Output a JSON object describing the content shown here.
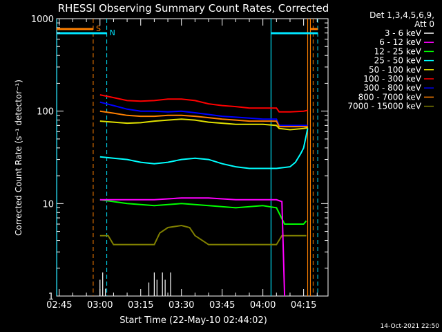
{
  "chart_data": {
    "type": "line",
    "title": "RHESSI Observing Summary Count Rates, Corrected",
    "xlabel": "Start Time (22-May-10 02:44:02)",
    "ylabel": "Corrected Count Rate (s⁻¹ detector⁻¹)",
    "yscale": "log",
    "ylim": [
      1,
      1000
    ],
    "xlim": [
      "02:44:02",
      "04:24:00"
    ],
    "xticks": [
      "02:45",
      "03:00",
      "03:15",
      "03:30",
      "03:45",
      "04:00",
      "04:15"
    ],
    "yticks": [
      "1",
      "10",
      "100",
      "1000"
    ],
    "grid": false,
    "legend_position": "right",
    "legend_header": [
      "Det 1,3,4,5,6,9,",
      "Att 0"
    ],
    "footer": "14-Oct-2021 22:50",
    "flags": [
      {
        "label": "S",
        "color": "#ff8000"
      },
      {
        "label": "N",
        "color": "#00e5ff"
      }
    ],
    "series": [
      {
        "name": "3 - 6 keV",
        "color": "#ffffff",
        "x": [
          "03:00",
          "03:01",
          "03:02",
          "03:18",
          "03:20",
          "03:21",
          "03:23",
          "03:24",
          "03:26"
        ],
        "y": [
          1.5,
          1.8,
          1.2,
          1.4,
          1.8,
          1.5,
          1.8,
          1.5,
          1.8
        ]
      },
      {
        "name": "6 - 12 keV",
        "color": "#ff00ff",
        "x": [
          "03:00",
          "03:10",
          "03:20",
          "03:30",
          "03:40",
          "03:50",
          "04:00",
          "04:05",
          "04:07",
          "04:08"
        ],
        "y": [
          11,
          11,
          11,
          11.5,
          11.5,
          11,
          11,
          11,
          10.5,
          1
        ]
      },
      {
        "name": "12 - 25 keV",
        "color": "#00ff00",
        "x": [
          "03:00",
          "03:05",
          "03:10",
          "03:20",
          "03:30",
          "03:40",
          "03:50",
          "04:00",
          "04:05",
          "04:08",
          "04:15",
          "04:16"
        ],
        "y": [
          11,
          10.5,
          10,
          9.5,
          10,
          9.5,
          9,
          9.5,
          9,
          6,
          6,
          6.5
        ]
      },
      {
        "name": "25 - 50 keV",
        "color": "#00ffff",
        "x": [
          "03:00",
          "03:05",
          "03:10",
          "03:15",
          "03:20",
          "03:25",
          "03:30",
          "03:35",
          "03:40",
          "03:45",
          "03:50",
          "03:55",
          "04:00",
          "04:05",
          "04:10",
          "04:12",
          "04:14",
          "04:15",
          "04:16",
          "04:16.5"
        ],
        "y": [
          32,
          31,
          30,
          28,
          27,
          28,
          30,
          31,
          30,
          27,
          25,
          24,
          24,
          24,
          25,
          28,
          35,
          40,
          55,
          65
        ]
      },
      {
        "name": "50 - 100 keV",
        "color": "#e0e000",
        "x": [
          "03:00",
          "03:05",
          "03:10",
          "03:15",
          "03:20",
          "03:25",
          "03:30",
          "03:35",
          "03:40",
          "03:45",
          "03:50",
          "03:55",
          "04:00",
          "04:05",
          "04:06",
          "04:10",
          "04:15",
          "04:16.5"
        ],
        "y": [
          78,
          76,
          74,
          75,
          78,
          80,
          82,
          80,
          76,
          74,
          72,
          72,
          72,
          70,
          65,
          63,
          65,
          66
        ]
      },
      {
        "name": "100 - 300 keV",
        "color": "#ff0000",
        "x": [
          "03:00",
          "03:05",
          "03:10",
          "03:15",
          "03:20",
          "03:25",
          "03:30",
          "03:35",
          "03:40",
          "03:45",
          "03:50",
          "03:55",
          "04:00",
          "04:05",
          "04:06",
          "04:10",
          "04:15",
          "04:16.5"
        ],
        "y": [
          150,
          140,
          130,
          128,
          130,
          135,
          135,
          130,
          120,
          115,
          112,
          108,
          108,
          108,
          98,
          98,
          100,
          102
        ]
      },
      {
        "name": "300 - 800 keV",
        "color": "#0000ff",
        "x": [
          "03:00",
          "03:05",
          "03:10",
          "03:15",
          "03:20",
          "03:25",
          "03:30",
          "03:35",
          "03:40",
          "03:45",
          "03:50",
          "03:55",
          "04:00",
          "04:05",
          "04:06",
          "04:10",
          "04:15",
          "04:16.5"
        ],
        "y": [
          125,
          115,
          105,
          100,
          100,
          98,
          100,
          96,
          92,
          88,
          86,
          84,
          82,
          82,
          70,
          70,
          70,
          70
        ]
      },
      {
        "name": "800 - 7000 keV",
        "color": "#ff8000",
        "x": [
          "03:00",
          "03:05",
          "03:10",
          "03:15",
          "03:20",
          "03:25",
          "03:30",
          "03:35",
          "03:40",
          "03:45",
          "03:50",
          "03:55",
          "04:00",
          "04:05",
          "04:06",
          "04:10",
          "04:15",
          "04:16.5"
        ],
        "y": [
          100,
          95,
          90,
          88,
          88,
          90,
          90,
          88,
          85,
          82,
          80,
          78,
          78,
          78,
          68,
          68,
          68,
          68
        ]
      },
      {
        "name": "7000 - 15000 keV",
        "color": "#808000",
        "x": [
          "03:00",
          "03:03",
          "03:05",
          "03:10",
          "03:15",
          "03:20",
          "03:22",
          "03:25",
          "03:30",
          "03:33",
          "03:35",
          "03:40",
          "03:45",
          "03:50",
          "03:55",
          "04:00",
          "04:05",
          "04:07",
          "04:08",
          "04:15",
          "04:16"
        ],
        "y": [
          4.5,
          4.5,
          3.6,
          3.6,
          3.6,
          3.6,
          4.8,
          5.5,
          5.8,
          5.5,
          4.5,
          3.6,
          3.6,
          3.6,
          3.6,
          3.6,
          3.6,
          4.5,
          4.5,
          4.5,
          4.5
        ]
      }
    ]
  }
}
